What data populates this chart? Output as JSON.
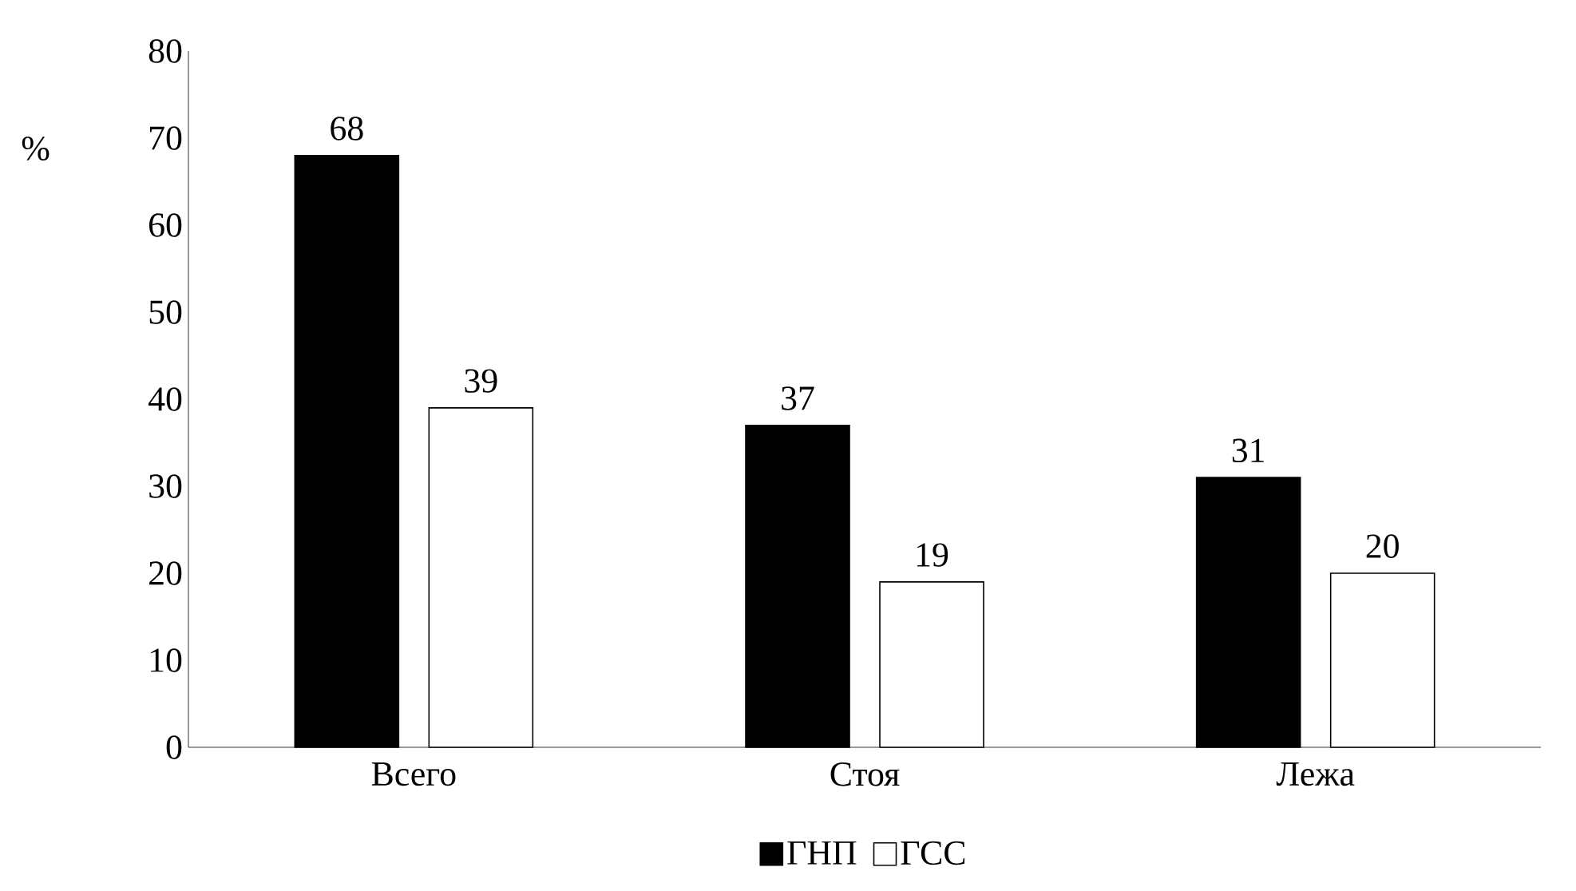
{
  "chart_data": {
    "type": "bar",
    "ylabel": "%",
    "categories": [
      "Всего",
      "Стоя",
      "Лежа"
    ],
    "series": [
      {
        "name": "ГНП",
        "color": "#000000",
        "values": [
          68,
          37,
          31
        ]
      },
      {
        "name": "ГСС",
        "color": "#ffffff",
        "values": [
          39,
          19,
          20
        ]
      }
    ],
    "ylim": [
      0,
      80
    ],
    "yticks": [
      0,
      10,
      20,
      30,
      40,
      50,
      60,
      70,
      80
    ],
    "data_labels": true,
    "legend": "bottom",
    "grid": false
  }
}
